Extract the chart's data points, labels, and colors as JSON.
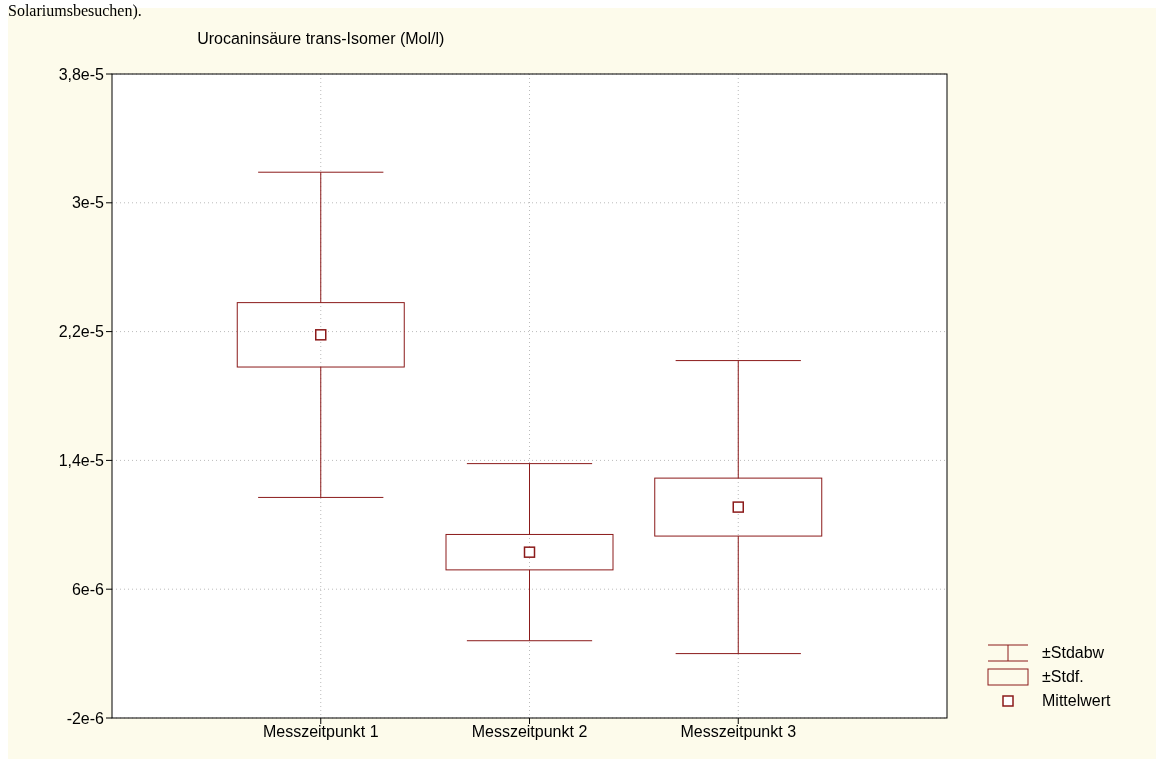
{
  "chart_data": {
    "type": "box",
    "title": "Urocaninsäure trans-Isomer (Mol/l)",
    "categories": [
      "Messzeitpunkt 1",
      "Messzeitpunkt 2",
      "Messzeitpunkt 3"
    ],
    "boxes": [
      {
        "low": 1.17e-05,
        "q1": 1.98e-05,
        "median": 2.18e-05,
        "q3": 2.38e-05,
        "high": 3.19e-05
      },
      {
        "low": 2.8e-06,
        "q1": 7.2e-06,
        "median": 8.3e-06,
        "q3": 9.4e-06,
        "high": 1.38e-05
      },
      {
        "low": 2e-06,
        "q1": 9.3e-06,
        "median": 1.11e-05,
        "q3": 1.29e-05,
        "high": 2.02e-05
      }
    ],
    "color": "#8b1a1a",
    "ylim": [
      -2e-06,
      3.8e-05
    ],
    "yticks": [
      {
        "value": -2e-06,
        "label": "-2e-6"
      },
      {
        "value": 6e-06,
        "label": "6e-6"
      },
      {
        "value": 1.4e-05,
        "label": "1,4e-5"
      },
      {
        "value": 2.2e-05,
        "label": "2,2e-5"
      },
      {
        "value": 3e-05,
        "label": "3e-5"
      },
      {
        "value": 3.8e-05,
        "label": "3,8e-5"
      }
    ],
    "grid": true,
    "marker": "square",
    "annotations": [
      "Solariumsbesuchen).",
      "±Stdabw",
      "±Stdf.",
      "Mittelwert"
    ]
  }
}
